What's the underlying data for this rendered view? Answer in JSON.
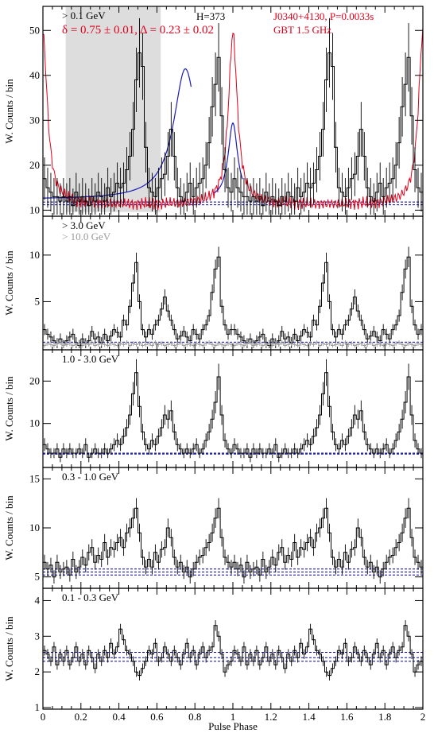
{
  "chart_data": {
    "type": "line",
    "xlabel": "Pulse Phase",
    "ylabel": "W. Counts / bin",
    "xlim": [
      0,
      2
    ],
    "x_ticks": [
      0,
      0.2,
      0.4,
      0.6,
      0.8,
      1,
      1.2,
      1.4,
      1.6,
      1.8,
      2
    ],
    "x_tick_labels": [
      "0",
      "0.2",
      "0.4",
      "0.6",
      "0.8",
      "1",
      "1.2",
      "1.4",
      "1.6",
      "1.8",
      "2"
    ],
    "bins_per_rotation": 60,
    "panels": [
      {
        "label": "> 0.1 GeV",
        "ylim": [
          9,
          55
        ],
        "y_ticks": [
          10,
          20,
          30,
          40,
          50
        ],
        "background_levels": [
          11.2,
          11.8
        ],
        "annotations": {
          "h_test": "H=373",
          "pulsar": "J0340+4130, P=0.0033s",
          "radio": "GBT 1.5 GHz",
          "fit": "δ = 0.75 ± 0.01, Δ = 0.23 ± 0.02"
        },
        "offpulse_region": [
          0.12,
          0.62
        ],
        "series": [
          {
            "name": "> 0.1 GeV",
            "values": [
              17,
              15,
              14,
              13,
              13,
              12,
              13,
              12,
              13,
              11,
              14,
              12,
              13,
              12,
              11,
              13,
              12,
              14,
              13,
              12,
              15,
              13,
              14,
              16,
              15,
              16,
              19,
              22,
              28,
              39,
              45,
              42,
              24,
              15,
              14,
              13,
              15,
              17,
              18,
              22,
              28,
              22,
              15,
              13,
              12,
              14,
              16,
              13,
              15,
              16,
              17,
              20,
              25,
              33,
              38,
              44,
              31,
              19,
              15,
              14
            ]
          }
        ]
      },
      {
        "label": "> 3.0 GeV",
        "label2": "> 10.0 GeV",
        "ylim": [
          0,
          14
        ],
        "y_ticks": [
          5,
          10
        ],
        "background_levels": [
          0.65
        ],
        "series": [
          {
            "name": "> 3.0 GeV",
            "values": [
              2.0,
              1.5,
              1.2,
              0.8,
              0.5,
              1.0,
              0.3,
              0.8,
              1.2,
              1.5,
              0.6,
              0.3,
              1.0,
              0.5,
              0.8,
              1.8,
              1.0,
              1.2,
              0.6,
              1.5,
              0.8,
              1.3,
              2.0,
              1.7,
              1.2,
              3.0,
              2.5,
              4.5,
              7.0,
              9.2,
              5.0,
              2.0,
              1.2,
              2.0,
              1.5,
              2.5,
              3.0,
              4.2,
              5.5,
              4.0,
              3.0,
              2.0,
              1.0,
              1.3,
              1.8,
              1.2,
              0.8,
              2.0,
              1.5,
              1.0,
              2.0,
              2.5,
              3.5,
              6.0,
              8.5,
              9.8,
              4.5,
              2.5,
              1.5,
              2.0
            ]
          },
          {
            "name": "> 10.0 GeV",
            "values": [
              0.3,
              0.5,
              0.4,
              0.3,
              0.5,
              0.6,
              0.3,
              0.4,
              0.5,
              0.3,
              0.4,
              0.5,
              0.3,
              0.5,
              0.4,
              0.6,
              0.3,
              0.4,
              0.5,
              0.4,
              0.3,
              0.5,
              0.4,
              0.3,
              0.5,
              0.4,
              0.6,
              0.3,
              0.5,
              0.4,
              0.5,
              0.3,
              0.4,
              0.5,
              0.3,
              0.6,
              0.4,
              0.5,
              0.3,
              0.4,
              0.5,
              0.3,
              0.4,
              0.6,
              0.3,
              0.4,
              0.5,
              0.3,
              0.5,
              0.4,
              0.3,
              0.5,
              0.6,
              0.4,
              0.3,
              0.5,
              0.4,
              0.3,
              0.5,
              0.4
            ]
          }
        ]
      },
      {
        "label": "1.0 - 3.0 GeV",
        "ylim": [
          0,
          27
        ],
        "y_ticks": [
          10,
          20
        ],
        "background_levels": [
          2.8,
          3.0
        ],
        "series": [
          {
            "name": "1.0 - 3.0 GeV",
            "values": [
              5,
              4,
              3,
              3,
              4,
              2,
              4,
              3,
              4,
              3,
              3,
              4,
              3,
              5,
              2,
              3,
              4,
              3,
              3,
              4,
              3,
              4,
              5,
              6,
              5,
              7,
              9,
              12,
              17,
              22,
              14,
              8,
              5,
              4,
              6,
              5,
              7,
              9,
              12,
              11,
              13,
              8,
              5,
              4,
              3,
              4,
              3,
              4,
              5,
              3,
              4,
              6,
              8,
              11,
              15,
              21,
              12,
              6,
              4,
              3
            ]
          }
        ]
      },
      {
        "label": "0.3 - 1.0 GeV",
        "ylim": [
          4,
          16
        ],
        "y_ticks": [
          5,
          10,
          15
        ],
        "background_levels": [
          5.2,
          5.5,
          5.8
        ],
        "series": [
          {
            "name": "0.3 - 1.0 GeV",
            "values": [
              6.5,
              5.8,
              6.2,
              5.0,
              6.5,
              5.5,
              5.8,
              6.0,
              5.2,
              6.8,
              5.5,
              6.0,
              7.0,
              6.2,
              7.5,
              8.0,
              6.5,
              7.2,
              6.8,
              8.5,
              7.0,
              8.0,
              7.8,
              8.5,
              9.0,
              8.0,
              9.5,
              10.0,
              11.0,
              12.0,
              9.5,
              7.0,
              6.0,
              6.8,
              6.0,
              7.5,
              6.5,
              7.8,
              8.0,
              10.0,
              9.0,
              7.0,
              6.0,
              6.5,
              5.5,
              6.0,
              5.0,
              5.8,
              6.5,
              7.0,
              7.2,
              8.0,
              8.5,
              9.5,
              11.0,
              12.0,
              9.0,
              7.0,
              6.5,
              6.0
            ]
          }
        ]
      },
      {
        "label": "0.1 - 0.3 GeV",
        "ylim": [
          1,
          4.3
        ],
        "y_ticks": [
          1,
          2,
          3,
          4
        ],
        "background_levels": [
          2.3,
          2.4,
          2.55
        ],
        "series": [
          {
            "name": "0.1 - 0.3 GeV",
            "values": [
              2.6,
              2.5,
              2.3,
              2.7,
              2.2,
              2.5,
              2.3,
              2.6,
              2.2,
              2.4,
              2.7,
              2.3,
              2.5,
              2.2,
              2.6,
              2.4,
              2.1,
              2.5,
              2.3,
              2.6,
              2.4,
              2.8,
              2.5,
              2.7,
              3.2,
              2.9,
              2.6,
              2.5,
              2.3,
              2.0,
              1.9,
              2.1,
              2.3,
              2.6,
              2.5,
              2.8,
              2.3,
              2.4,
              2.7,
              2.5,
              2.3,
              2.6,
              2.4,
              2.2,
              2.5,
              2.8,
              2.4,
              2.6,
              2.2,
              2.5,
              2.7,
              2.4,
              2.6,
              2.7,
              3.3,
              3.0,
              2.5,
              2.0,
              2.2,
              2.3
            ]
          }
        ]
      }
    ],
    "radio_profile": {
      "name": "GBT 1.5 GHz",
      "color": "#e0001b"
    },
    "colors": {
      "histogram": "#000000",
      "radio": "#e0001b",
      "fit": "#1a1ab8",
      "background": "#0000a0",
      "high_energy": "#999999",
      "offpulse": "#dddddd"
    }
  }
}
